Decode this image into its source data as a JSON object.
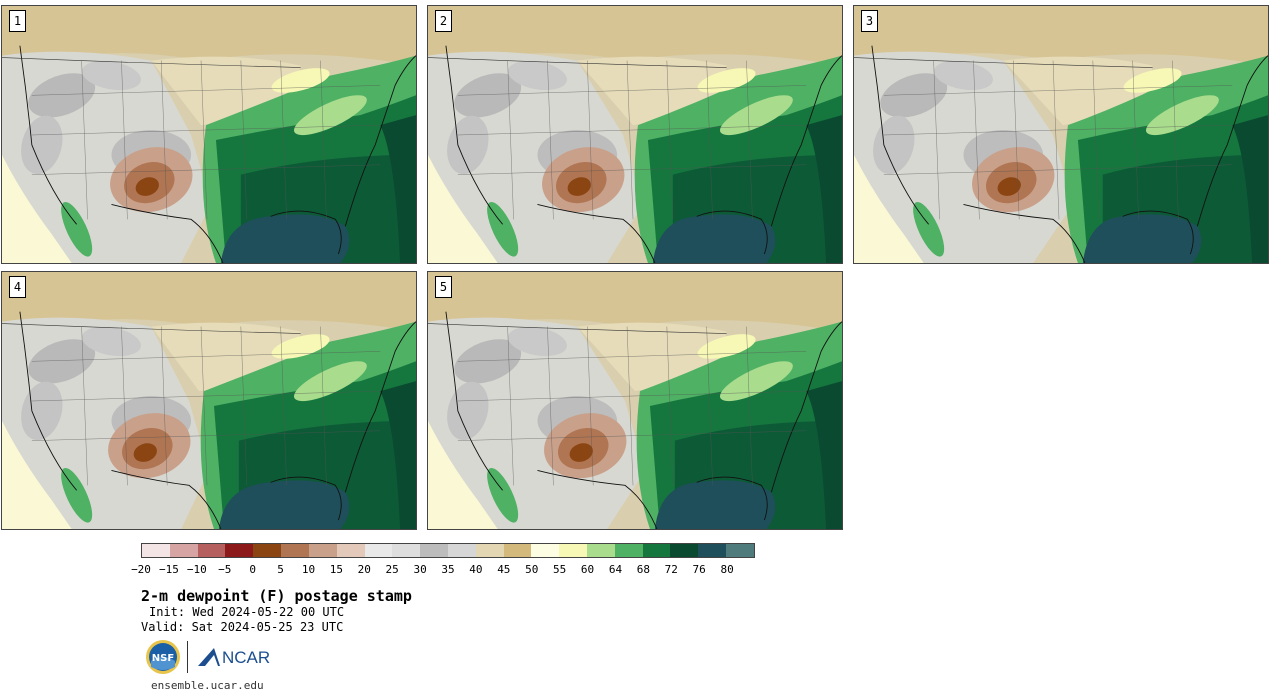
{
  "panels": [
    {
      "label": "1",
      "variant": 0
    },
    {
      "label": "2",
      "variant": 1
    },
    {
      "label": "3",
      "variant": 2
    },
    {
      "label": "4",
      "variant": 3
    },
    {
      "label": "5",
      "variant": 4
    }
  ],
  "colorbar": {
    "colors": [
      "#f3e5e5",
      "#d7a4a4",
      "#b55f5f",
      "#8c1a1a",
      "#8b4513",
      "#b07552",
      "#c9a18b",
      "#e3c9b9",
      "#e9e9e9",
      "#dedede",
      "#bcbcbc",
      "#d6d6d6",
      "#e3d6b2",
      "#d3b97c",
      "#fdfde3",
      "#f7f7b6",
      "#a9dc8d",
      "#4fb164",
      "#15773e",
      "#0a4a30",
      "#1f4f5b",
      "#4f7b7d"
    ],
    "ticks": [
      "−20",
      "−15",
      "−10",
      "−5",
      "0",
      "5",
      "10",
      "15",
      "20",
      "25",
      "30",
      "35",
      "40",
      "45",
      "50",
      "55",
      "60",
      "64",
      "68",
      "72",
      "76",
      "80"
    ]
  },
  "title": "2-m dewpoint (F) postage stamp",
  "init_line": "Init: Wed 2024-05-22 00 UTC",
  "valid_line": "Valid: Sat 2024-05-25 23 UTC",
  "logos": {
    "nsf_text": "NSF",
    "ncar_text": "NCAR"
  },
  "site": "ensemble.ucar.edu"
}
